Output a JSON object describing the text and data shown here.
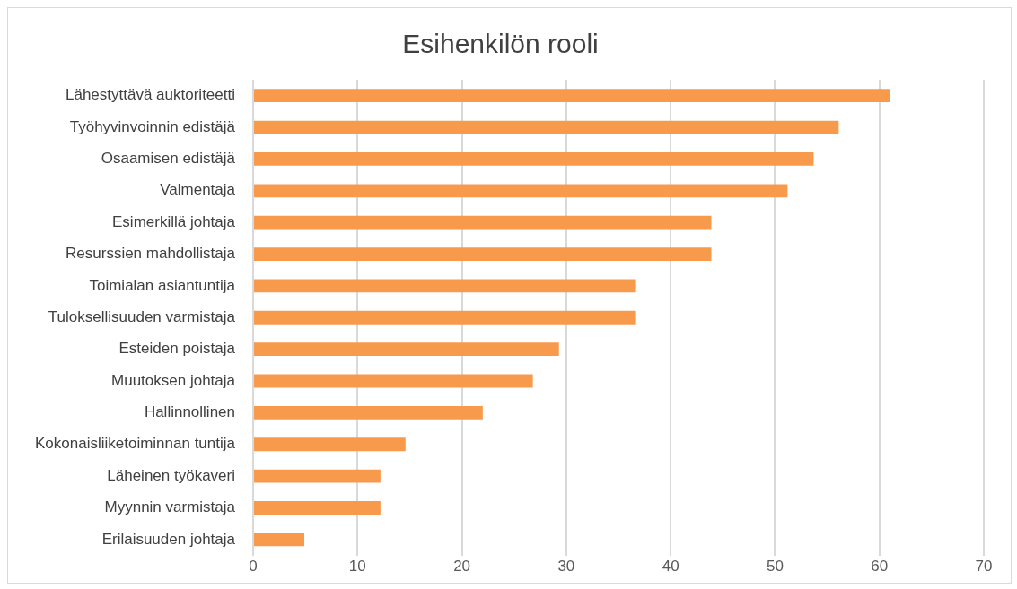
{
  "chart_data": {
    "type": "bar",
    "orientation": "horizontal",
    "title": "Esihenkilön rooli",
    "categories": [
      "Lähestyttävä auktoriteetti",
      "Työhyvinvoinnin edistäjä",
      "Osaamisen edistäjä",
      "Valmentaja",
      "Esimerkillä johtaja",
      "Resurssien mahdollistaja",
      "Toimialan asiantuntija",
      "Tuloksellisuuden varmistaja",
      "Esteiden poistaja",
      "Muutoksen johtaja",
      "Hallinnollinen",
      "Kokonaisliiketoiminnan tuntija",
      "Läheinen työkaveri",
      "Myynnin varmistaja",
      "Erilaisuuden johtaja"
    ],
    "values": [
      61.0,
      56.1,
      53.7,
      51.2,
      43.9,
      43.9,
      36.6,
      36.6,
      29.3,
      26.8,
      22.0,
      14.6,
      12.2,
      12.2,
      4.9
    ],
    "color": "#f79a4c",
    "xlim": [
      0,
      70
    ],
    "xticks": [
      0,
      10,
      20,
      30,
      40,
      50,
      60,
      70
    ],
    "grid": "x",
    "legend": false
  }
}
